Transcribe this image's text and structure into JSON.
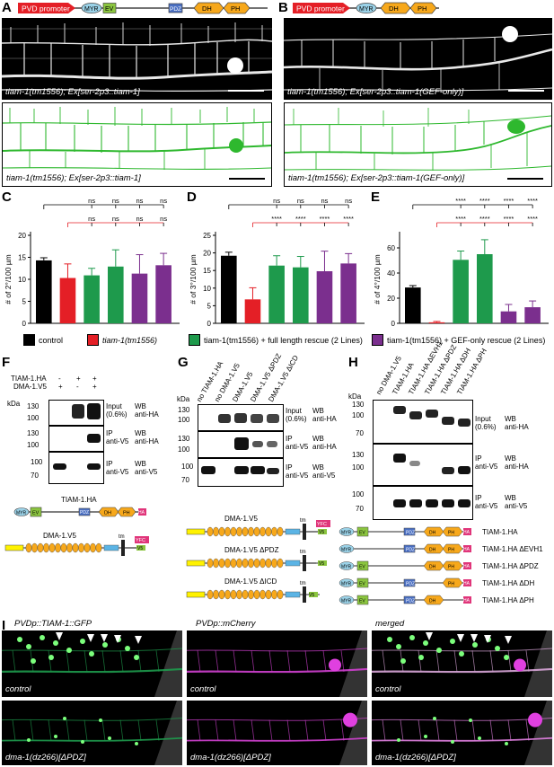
{
  "panels": {
    "A": "A",
    "B": "B",
    "C": "C",
    "D": "D",
    "E": "E",
    "F": "F",
    "G": "G",
    "H": "H",
    "I": "I"
  },
  "A": {
    "promoter": "PVD promoter",
    "domains": [
      "MYR",
      "EV",
      "PDZ",
      "DH",
      "PH"
    ],
    "micro_caption": "tiam-1(tm1556); Ex[ser-2p3::tiam-1]",
    "trace_caption": "tiam-1(tm1556); Ex[ser-2p3::tiam-1]"
  },
  "B": {
    "promoter": "PVD promoter",
    "domains": [
      "MYR",
      "DH",
      "PH"
    ],
    "micro_caption": "tiam-1(tm1556); Ex[ser-2p3::tiam-1(GEF-only)]",
    "trace_caption": "tiam-1(tm1556); Ex[ser-2p3::tiam-1(GEF-only)]"
  },
  "colors": {
    "black": "#000000",
    "red": "#e41f26",
    "green": "#1e9a4c",
    "purple": "#7b2f8e",
    "trace": "#2eb82e",
    "magenta": "#e040e0"
  },
  "chart_data": [
    {
      "type": "bar",
      "panel": "C",
      "ylabel": "# of 2°/100 µm",
      "ylim": [
        0,
        20
      ],
      "yticks": [
        0,
        5,
        10,
        15,
        20
      ],
      "values": [
        14.3,
        10.3,
        10.9,
        12.9,
        11.3,
        13.2
      ],
      "errors": [
        0.6,
        3.2,
        1.6,
        3.8,
        4.3,
        2.7
      ],
      "colors": [
        "#000000",
        "#e41f26",
        "#1e9a4c",
        "#1e9a4c",
        "#7b2f8e",
        "#7b2f8e"
      ],
      "sig_top": [
        "ns",
        "ns",
        "ns",
        "ns"
      ],
      "sig_mid": [
        "ns",
        "ns",
        "ns",
        "ns"
      ]
    },
    {
      "type": "bar",
      "panel": "D",
      "ylabel": "# of 3°/100 µm",
      "ylim": [
        0,
        25
      ],
      "yticks": [
        0,
        5,
        10,
        15,
        20,
        25
      ],
      "values": [
        19.2,
        6.8,
        16.4,
        15.9,
        14.8,
        17.0
      ],
      "errors": [
        1.0,
        3.3,
        2.8,
        3.1,
        5.7,
        2.8
      ],
      "colors": [
        "#000000",
        "#e41f26",
        "#1e9a4c",
        "#1e9a4c",
        "#7b2f8e",
        "#7b2f8e"
      ],
      "sig_top": [
        "ns",
        "ns",
        "ns",
        "ns"
      ],
      "sig_mid": [
        "****",
        "****",
        "****",
        "****"
      ]
    },
    {
      "type": "bar",
      "panel": "E",
      "ylabel": "# of 4°/100 µm",
      "ylim": [
        0,
        70
      ],
      "yticks": [
        0,
        20,
        40,
        60
      ],
      "values": [
        28.5,
        0.8,
        50.5,
        55.0,
        9.5,
        12.8
      ],
      "errors": [
        1.5,
        0.7,
        7.0,
        11.5,
        5.5,
        5.0
      ],
      "colors": [
        "#000000",
        "#e41f26",
        "#1e9a4c",
        "#1e9a4c",
        "#7b2f8e",
        "#7b2f8e"
      ],
      "sig_top": [
        "****",
        "****",
        "****",
        "****"
      ],
      "sig_mid": [
        "****",
        "****",
        "****",
        "****"
      ]
    }
  ],
  "legend": {
    "control": "control",
    "mutant": "tiam-1(tm1556)",
    "full_rescue": "tiam-1(tm1556) + full length rescue (2 Lines)",
    "gef_rescue": "tiam-1(tm1556) + GEF-only rescue (2 Lines)"
  },
  "F": {
    "row1": "TIAM-1.HA",
    "row2": "DMA-1.V5",
    "signs1": [
      "-",
      "+",
      "+"
    ],
    "signs2": [
      "+",
      "-",
      "+"
    ],
    "kda": "kDa",
    "ticks1": [
      "130",
      "100"
    ],
    "ticks2": [
      "130",
      "100"
    ],
    "ticks3": [
      "100",
      "70"
    ],
    "labels": [
      [
        "Input",
        "(0.6%)"
      ],
      [
        "IP",
        "anti-V5"
      ],
      [
        "IP",
        "anti-V5"
      ]
    ],
    "wb": [
      [
        "WB",
        "anti-HA"
      ],
      [
        "WB",
        "anti-HA"
      ],
      [
        "WB",
        "anti-V5"
      ]
    ],
    "construct1": "TIAM-1.HA",
    "construct2": "DMA-1.V5"
  },
  "G": {
    "kda": "kDa",
    "lanes": [
      "no TIAM-1.HA",
      "no DMA-1.V5",
      "DMA-1.V5",
      "DMA-1.V5 ΔPDZ",
      "DMA-1.V5 ΔICD"
    ],
    "ticks1": [
      "130",
      "100"
    ],
    "ticks2": [
      "130",
      "100"
    ],
    "ticks3": [
      "100",
      "70"
    ],
    "labels": [
      [
        "Input",
        "(0.6%)"
      ],
      [
        "IP",
        "anti-V5"
      ],
      [
        "IP",
        "anti-V5"
      ]
    ],
    "wb": [
      [
        "WB",
        "anti-HA"
      ],
      [
        "WB",
        "anti-HA"
      ],
      [
        "WB",
        "anti-V5"
      ]
    ],
    "constructs": [
      "DMA-1.V5",
      "DMA-1.V5 ΔPDZ",
      "DMA-1.V5 ΔICD"
    ]
  },
  "H": {
    "kda": "kDa",
    "lanes": [
      "no DMA-1.V5",
      "TIAM-1.HA",
      "TIAM-1.HA ΔEVH1",
      "TIAM-1.HA ΔPDZ",
      "TIAM-1.HA ΔDH",
      "TIAM-1.HA ΔPH"
    ],
    "ticks1": [
      "130",
      "100",
      "70"
    ],
    "ticks2": [
      "130",
      "100"
    ],
    "ticks3": [
      "100",
      "70"
    ],
    "labels": [
      [
        "Input",
        "(0.6%)"
      ],
      [
        "IP",
        "anti-V5"
      ],
      [
        "IP",
        "anti-V5"
      ]
    ],
    "wb": [
      [
        "WB",
        "anti-HA"
      ],
      [
        "WB",
        "anti-HA"
      ],
      [
        "WB",
        "anti-V5"
      ]
    ],
    "constructs": [
      "TIAM-1.HA",
      "TIAM-1.HA ΔEVH1",
      "TIAM-1.HA ΔPDZ",
      "TIAM-1.HA ΔDH",
      "TIAM-1.HA ΔPH"
    ]
  },
  "domains": {
    "myr": "MYR",
    "ev": "EV",
    "pdz": "PDZ",
    "dh": "DH",
    "ph": "PH",
    "ha": "HA",
    "tm": "tm",
    "v5": "V5",
    "yfc": "YFC"
  },
  "I": {
    "titles": [
      "PVDp::TIAM-1::GFP",
      "PVDp::mCherry",
      "merged"
    ],
    "row1_caption": "control",
    "row2_caption": "dma-1(dz266)[ΔPDZ]"
  }
}
